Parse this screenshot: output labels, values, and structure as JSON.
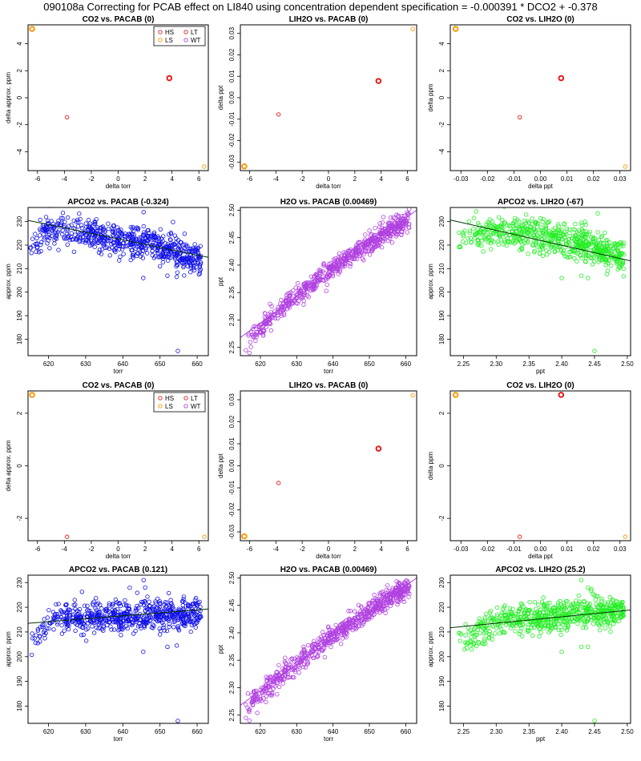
{
  "title": "090108a Correcting for PCAB effect on LI840 using concentration dependent specification = -0.000391 * DCO2 + -0.378",
  "colors": {
    "HS": "#e41a1c",
    "LS": "#ff9900",
    "LT": "#cc2222",
    "WT": "#b040e0",
    "blue": "#1010e8",
    "purple": "#b040e0",
    "green": "#22ee22",
    "line_dark": "#003300"
  },
  "chart_data": [
    {
      "type": "scatter",
      "title": "CO2 vs. PACAB (0)",
      "xlabel": "delta torr",
      "ylabel": "delta approx. ppm",
      "xlim": [
        -6.7,
        6.7
      ],
      "ylim": [
        -5.4,
        5.4
      ],
      "xticks": [
        -6,
        -4,
        -2,
        0,
        2,
        4,
        6
      ],
      "yticks": [
        -4,
        -2,
        0,
        2,
        4
      ],
      "points": [
        {
          "x": -6.4,
          "y": 5.1,
          "g": "LS",
          "bold": true
        },
        {
          "x": 6.4,
          "y": -5.1,
          "g": "LS"
        },
        {
          "x": -3.8,
          "y": -1.45,
          "g": "HS"
        },
        {
          "x": 3.8,
          "y": 1.45,
          "g": "HS",
          "bold": true
        }
      ],
      "legend": [
        "HS",
        "LT",
        "LS",
        "WT"
      ]
    },
    {
      "type": "scatter",
      "title": "LIH2O vs. PACAB (0)",
      "xlabel": "delta torr",
      "ylabel": "delta ppt",
      "xlim": [
        -6.7,
        6.7
      ],
      "ylim": [
        -0.034,
        0.034
      ],
      "xticks": [
        -6,
        -4,
        -2,
        0,
        2,
        4,
        6
      ],
      "yticks": [
        -0.03,
        -0.02,
        -0.01,
        0.0,
        0.01,
        0.02,
        0.03
      ],
      "ytick_labels": [
        "-0.03",
        "-0.02",
        "-0.01",
        "0.00",
        "0.01",
        "0.02",
        "0.03"
      ],
      "points": [
        {
          "x": -6.4,
          "y": -0.032,
          "g": "LS",
          "bold": true
        },
        {
          "x": 6.4,
          "y": 0.032,
          "g": "LS"
        },
        {
          "x": -3.8,
          "y": -0.0078,
          "g": "HS"
        },
        {
          "x": 3.8,
          "y": 0.0078,
          "g": "HS",
          "bold": true
        }
      ]
    },
    {
      "type": "scatter",
      "title": "CO2 vs. LIH2O (0)",
      "xlabel": "delta ppt",
      "ylabel": "delta ppm",
      "xlim": [
        -0.034,
        0.034
      ],
      "ylim": [
        -5.4,
        5.4
      ],
      "xticks": [
        -0.03,
        -0.02,
        -0.01,
        0.0,
        0.01,
        0.02,
        0.03
      ],
      "xtick_labels": [
        "-0.03",
        "-0.02",
        "-0.01",
        "0.00",
        "0.01",
        "0.02",
        "0.03"
      ],
      "yticks": [
        -4,
        -2,
        0,
        2,
        4
      ],
      "points": [
        {
          "x": -0.032,
          "y": 5.1,
          "g": "LS",
          "bold": true
        },
        {
          "x": 0.032,
          "y": -5.1,
          "g": "LS"
        },
        {
          "x": -0.0078,
          "y": -1.45,
          "g": "HS"
        },
        {
          "x": 0.0078,
          "y": 1.45,
          "g": "HS",
          "bold": true
        }
      ]
    },
    {
      "type": "scatter",
      "title": "APCO2 vs. PACAB (-0.324)",
      "xlabel": "torr",
      "ylabel": "approx. ppm",
      "xlim": [
        614.5,
        663
      ],
      "ylim": [
        173,
        236
      ],
      "xticks": [
        620,
        630,
        640,
        650,
        660
      ],
      "yticks": [
        180,
        190,
        200,
        210,
        220,
        230
      ],
      "cloud": {
        "color": "blue",
        "seed": 11,
        "n": 650,
        "knots": [
          [
            615,
            221
          ],
          [
            620,
            226
          ],
          [
            628,
            226
          ],
          [
            635,
            224
          ],
          [
            640,
            222
          ],
          [
            647,
            221
          ],
          [
            652,
            218
          ],
          [
            656,
            215
          ],
          [
            661,
            215
          ]
        ],
        "noise": 3.5,
        "outliers": [
          [
            654.8,
            175
          ],
          [
            645.5,
            206
          ],
          [
            652,
            207
          ],
          [
            654.5,
            206.5
          ],
          [
            653.5,
            229.8
          ],
          [
            645.6,
            234
          ],
          [
            650,
            211
          ]
        ]
      },
      "fit": {
        "x": [
          614.5,
          663
        ],
        "y": [
          230.5,
          214.8
        ],
        "color": "line_dark"
      }
    },
    {
      "type": "scatter",
      "title": "H2O vs. PACAB (0.00469)",
      "xlabel": "torr",
      "ylabel": "ppt",
      "xlim": [
        614.5,
        663
      ],
      "ylim": [
        2.235,
        2.505
      ],
      "xticks": [
        620,
        630,
        640,
        650,
        660
      ],
      "yticks": [
        2.25,
        2.3,
        2.35,
        2.4,
        2.45,
        2.5
      ],
      "ytick_labels": [
        "2.25",
        "2.30",
        "2.35",
        "2.40",
        "2.45",
        "2.50"
      ],
      "cloud": {
        "color": "purple",
        "seed": 23,
        "n": 650,
        "knots": [
          [
            616,
            2.262
          ],
          [
            620,
            2.285
          ],
          [
            625,
            2.32
          ],
          [
            630,
            2.345
          ],
          [
            640,
            2.395
          ],
          [
            650,
            2.44
          ],
          [
            655,
            2.462
          ],
          [
            661,
            2.482
          ]
        ],
        "noise": 0.009,
        "outliers": [
          [
            617,
            2.24
          ],
          [
            616,
            2.245
          ],
          [
            618,
            2.27
          ]
        ]
      },
      "fit": {
        "x": [
          614.5,
          663
        ],
        "y": [
          2.268,
          2.5
        ],
        "color": "purple"
      }
    },
    {
      "type": "scatter",
      "title": "APCO2 vs. LIH2O (-67)",
      "xlabel": "ppt",
      "ylabel": "approx. ppm",
      "xlim": [
        2.23,
        2.505
      ],
      "ylim": [
        173,
        236
      ],
      "xticks": [
        2.25,
        2.3,
        2.35,
        2.4,
        2.45,
        2.5
      ],
      "xtick_labels": [
        "2.25",
        "2.30",
        "2.35",
        "2.40",
        "2.45",
        "2.50"
      ],
      "yticks": [
        180,
        190,
        200,
        210,
        220,
        230
      ],
      "cloud": {
        "color": "green",
        "seed": 37,
        "n": 650,
        "knots": [
          [
            2.24,
            221
          ],
          [
            2.26,
            223
          ],
          [
            2.3,
            226
          ],
          [
            2.35,
            225
          ],
          [
            2.4,
            222
          ],
          [
            2.44,
            220
          ],
          [
            2.47,
            216
          ],
          [
            2.495,
            215
          ]
        ],
        "noise": 3.5,
        "outliers": [
          [
            2.45,
            175
          ],
          [
            2.4,
            206
          ],
          [
            2.43,
            207
          ],
          [
            2.44,
            206
          ],
          [
            2.43,
            229.5
          ],
          [
            2.455,
            233.5
          ]
        ]
      },
      "fit": {
        "x": [
          2.23,
          2.505
        ],
        "y": [
          230.7,
          213.3
        ],
        "color": "line_dark"
      }
    },
    {
      "type": "scatter",
      "title": "CO2 vs. PACAB (0)",
      "xlabel": "delta torr",
      "ylabel": "delta approx. ppm",
      "xlim": [
        -6.7,
        6.7
      ],
      "ylim": [
        -2.85,
        2.85
      ],
      "xticks": [
        -6,
        -4,
        -2,
        0,
        2,
        4,
        6
      ],
      "yticks": [
        -2,
        0,
        2
      ],
      "points": [
        {
          "x": -6.4,
          "y": 2.7,
          "g": "LS",
          "bold": true
        },
        {
          "x": 6.4,
          "y": -2.7,
          "g": "LS"
        },
        {
          "x": -3.8,
          "y": -2.7,
          "g": "HS"
        }
      ],
      "legend": [
        "HS",
        "LT",
        "LS",
        "WT"
      ]
    },
    {
      "type": "scatter",
      "title": "LIH2O vs. PACAB (0)",
      "xlabel": "delta torr",
      "ylabel": "delta ppt",
      "xlim": [
        -6.7,
        6.7
      ],
      "ylim": [
        -0.034,
        0.034
      ],
      "xticks": [
        -6,
        -4,
        -2,
        0,
        2,
        4,
        6
      ],
      "yticks": [
        -0.03,
        -0.02,
        -0.01,
        0.0,
        0.01,
        0.02,
        0.03
      ],
      "ytick_labels": [
        "-0.03",
        "-0.02",
        "-0.01",
        "0.00",
        "0.01",
        "0.02",
        "0.03"
      ],
      "points": [
        {
          "x": -6.4,
          "y": -0.032,
          "g": "LS",
          "bold": true
        },
        {
          "x": 6.4,
          "y": 0.032,
          "g": "LS"
        },
        {
          "x": -3.8,
          "y": -0.0078,
          "g": "HS"
        },
        {
          "x": 3.8,
          "y": 0.0078,
          "g": "HS",
          "bold": true
        }
      ]
    },
    {
      "type": "scatter",
      "title": "CO2 vs. LIH2O (0)",
      "xlabel": "delta ppt",
      "ylabel": "delta ppm",
      "xlim": [
        -0.034,
        0.034
      ],
      "ylim": [
        -2.85,
        2.85
      ],
      "xticks": [
        -0.03,
        -0.02,
        -0.01,
        0.0,
        0.01,
        0.02,
        0.03
      ],
      "xtick_labels": [
        "-0.03",
        "-0.02",
        "-0.01",
        "0.00",
        "0.01",
        "0.02",
        "0.03"
      ],
      "yticks": [
        -2,
        0,
        2
      ],
      "points": [
        {
          "x": -0.032,
          "y": 2.7,
          "g": "LS",
          "bold": true
        },
        {
          "x": 0.032,
          "y": -2.7,
          "g": "LS"
        },
        {
          "x": -0.0078,
          "y": -2.7,
          "g": "HS"
        },
        {
          "x": 0.0078,
          "y": 2.7,
          "g": "HS",
          "bold": true
        }
      ]
    },
    {
      "type": "scatter",
      "title": "APCO2 vs. PACAB (0.121)",
      "xlabel": "torr",
      "ylabel": "approx. ppm",
      "xlim": [
        614.5,
        663
      ],
      "ylim": [
        173,
        233
      ],
      "xticks": [
        620,
        630,
        640,
        650,
        660
      ],
      "yticks": [
        180,
        190,
        200,
        210,
        220,
        230
      ],
      "cloud": {
        "color": "blue",
        "seed": 51,
        "n": 650,
        "knots": [
          [
            615,
            204
          ],
          [
            617,
            208
          ],
          [
            620,
            214
          ],
          [
            625,
            215
          ],
          [
            630,
            216
          ],
          [
            640,
            216
          ],
          [
            648,
            218
          ],
          [
            655,
            217
          ],
          [
            661,
            218
          ]
        ],
        "noise": 3.0,
        "outliers": [
          [
            654.8,
            174
          ],
          [
            645.5,
            202
          ],
          [
            652,
            204
          ],
          [
            654.5,
            204.5
          ],
          [
            645.6,
            231
          ],
          [
            646,
            228
          ],
          [
            650,
            209
          ]
        ]
      },
      "fit": {
        "x": [
          614.5,
          663
        ],
        "y": [
          213.5,
          219.3
        ],
        "color": "line_dark"
      }
    },
    {
      "type": "scatter",
      "title": "H2O vs. PACAB (0.00469)",
      "xlabel": "torr",
      "ylabel": "ppt",
      "xlim": [
        614.5,
        663
      ],
      "ylim": [
        2.235,
        2.505
      ],
      "xticks": [
        620,
        630,
        640,
        650,
        660
      ],
      "yticks": [
        2.25,
        2.3,
        2.35,
        2.4,
        2.45,
        2.5
      ],
      "ytick_labels": [
        "2.25",
        "2.30",
        "2.35",
        "2.40",
        "2.45",
        "2.50"
      ],
      "cloud": {
        "color": "purple",
        "seed": 67,
        "n": 650,
        "knots": [
          [
            616,
            2.262
          ],
          [
            620,
            2.285
          ],
          [
            625,
            2.32
          ],
          [
            630,
            2.345
          ],
          [
            640,
            2.395
          ],
          [
            650,
            2.44
          ],
          [
            655,
            2.462
          ],
          [
            661,
            2.482
          ]
        ],
        "noise": 0.009,
        "outliers": [
          [
            617,
            2.24
          ],
          [
            616,
            2.245
          ],
          [
            618,
            2.27
          ]
        ]
      },
      "fit": {
        "x": [
          614.5,
          663
        ],
        "y": [
          2.268,
          2.5
        ],
        "color": "purple"
      }
    },
    {
      "type": "scatter",
      "title": "APCO2 vs. LIH2O (25.2)",
      "xlabel": "ppt",
      "ylabel": "approx. ppm",
      "xlim": [
        2.23,
        2.505
      ],
      "ylim": [
        173,
        233
      ],
      "xticks": [
        2.25,
        2.3,
        2.35,
        2.4,
        2.45,
        2.5
      ],
      "xtick_labels": [
        "2.25",
        "2.30",
        "2.35",
        "2.40",
        "2.45",
        "2.50"
      ],
      "yticks": [
        180,
        190,
        200,
        210,
        220,
        230
      ],
      "cloud": {
        "color": "green",
        "seed": 79,
        "n": 650,
        "knots": [
          [
            2.24,
            205
          ],
          [
            2.26,
            208
          ],
          [
            2.3,
            214
          ],
          [
            2.35,
            216
          ],
          [
            2.4,
            216
          ],
          [
            2.43,
            218
          ],
          [
            2.46,
            218
          ],
          [
            2.495,
            218
          ]
        ],
        "noise": 3.0,
        "outliers": [
          [
            2.45,
            174
          ],
          [
            2.4,
            202
          ],
          [
            2.43,
            204
          ],
          [
            2.44,
            204
          ],
          [
            2.43,
            231
          ],
          [
            2.44,
            228
          ]
        ]
      },
      "fit": {
        "x": [
          2.23,
          2.505
        ],
        "y": [
          211.7,
          218.9
        ],
        "color": "line_dark"
      }
    }
  ]
}
